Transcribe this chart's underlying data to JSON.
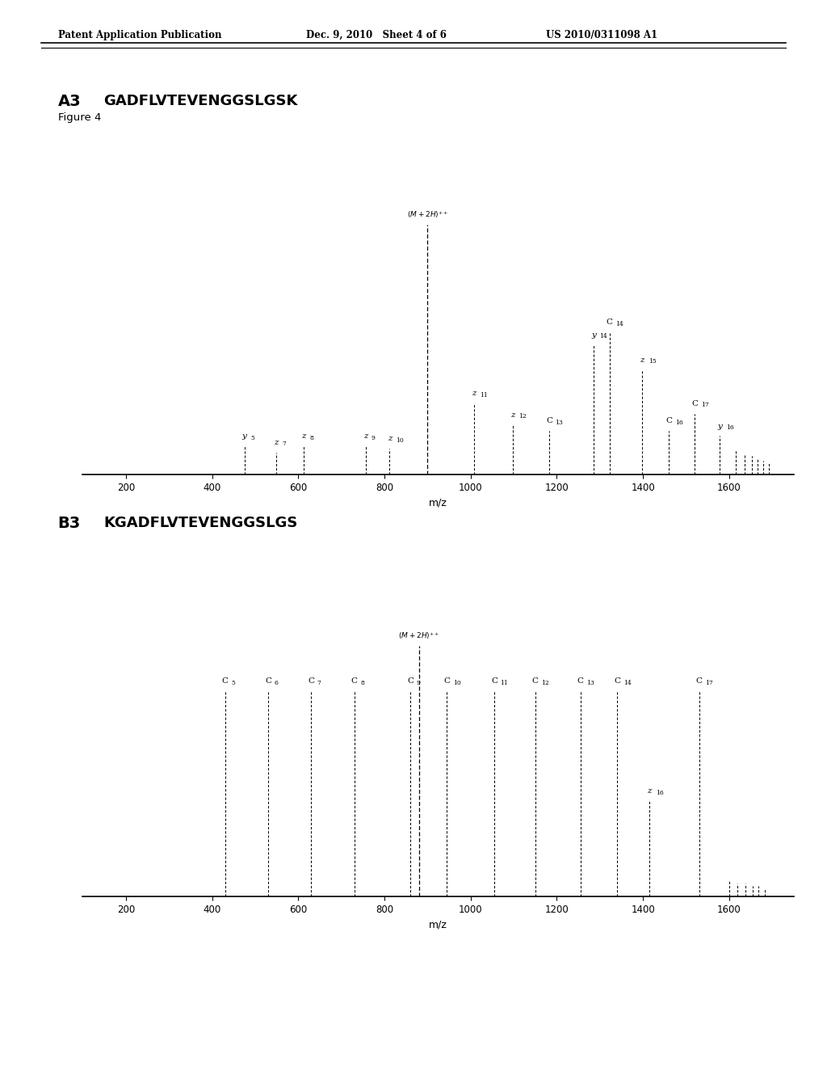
{
  "header_left": "Patent Application Publication",
  "header_mid": "Dec. 9, 2010   Sheet 4 of 6",
  "header_right": "US 2010/0311098 A1",
  "figure_label": "Figure 4",
  "panel_A": {
    "label": "A3",
    "sequence": "GADFLVTEVENGGSLGSK",
    "precursor_mz": 900,
    "precursor_intensity": 1.0,
    "peaks": [
      {
        "mz": 475,
        "intensity": 0.115,
        "label": "y",
        "subscript": "5",
        "italic": true
      },
      {
        "mz": 548,
        "intensity": 0.09,
        "label": "z",
        "subscript": "7",
        "italic": true
      },
      {
        "mz": 612,
        "intensity": 0.115,
        "label": "z",
        "subscript": "8",
        "italic": true
      },
      {
        "mz": 756,
        "intensity": 0.115,
        "label": "z",
        "subscript": "9",
        "italic": true
      },
      {
        "mz": 812,
        "intensity": 0.105,
        "label": "z",
        "subscript": "10",
        "italic": true
      },
      {
        "mz": 1008,
        "intensity": 0.285,
        "label": "z",
        "subscript": "11",
        "italic": true
      },
      {
        "mz": 1098,
        "intensity": 0.2,
        "label": "z",
        "subscript": "12",
        "italic": true
      },
      {
        "mz": 1182,
        "intensity": 0.175,
        "label": "C",
        "subscript": "13",
        "italic": false
      },
      {
        "mz": 1285,
        "intensity": 0.52,
        "label": "y",
        "subscript": "14",
        "italic": true
      },
      {
        "mz": 1322,
        "intensity": 0.57,
        "label": "C",
        "subscript": "14",
        "italic": false
      },
      {
        "mz": 1398,
        "intensity": 0.42,
        "label": "z",
        "subscript": "15",
        "italic": true
      },
      {
        "mz": 1460,
        "intensity": 0.175,
        "label": "C",
        "subscript": "16",
        "italic": false
      },
      {
        "mz": 1520,
        "intensity": 0.245,
        "label": "C",
        "subscript": "17",
        "italic": false
      },
      {
        "mz": 1578,
        "intensity": 0.155,
        "label": "y",
        "subscript": "16",
        "italic": true
      },
      {
        "mz": 1615,
        "intensity": 0.1,
        "label": "",
        "subscript": "",
        "italic": false
      },
      {
        "mz": 1635,
        "intensity": 0.085,
        "label": "",
        "subscript": "",
        "italic": false
      },
      {
        "mz": 1652,
        "intensity": 0.075,
        "label": "",
        "subscript": "",
        "italic": false
      },
      {
        "mz": 1665,
        "intensity": 0.065,
        "label": "",
        "subscript": "",
        "italic": false
      },
      {
        "mz": 1678,
        "intensity": 0.055,
        "label": "",
        "subscript": "",
        "italic": false
      },
      {
        "mz": 1692,
        "intensity": 0.05,
        "label": "",
        "subscript": "",
        "italic": false
      }
    ],
    "xlim": [
      100,
      1750
    ],
    "xticks": [
      200,
      400,
      600,
      800,
      1000,
      1200,
      1400,
      1600
    ],
    "xlabel": "m/z"
  },
  "panel_B": {
    "label": "B3",
    "sequence": "KGADFLVTEVENGGSLGS",
    "precursor_mz": 880,
    "precursor_intensity": 1.0,
    "peaks": [
      {
        "mz": 430,
        "intensity": 0.82,
        "label": "C",
        "subscript": "5",
        "italic": false
      },
      {
        "mz": 530,
        "intensity": 0.82,
        "label": "C",
        "subscript": "6",
        "italic": false
      },
      {
        "mz": 630,
        "intensity": 0.82,
        "label": "C",
        "subscript": "7",
        "italic": false
      },
      {
        "mz": 730,
        "intensity": 0.82,
        "label": "C",
        "subscript": "8",
        "italic": false
      },
      {
        "mz": 860,
        "intensity": 0.82,
        "label": "C",
        "subscript": "9",
        "italic": false
      },
      {
        "mz": 945,
        "intensity": 0.82,
        "label": "C",
        "subscript": "10",
        "italic": false
      },
      {
        "mz": 1055,
        "intensity": 0.82,
        "label": "C",
        "subscript": "11",
        "italic": false
      },
      {
        "mz": 1150,
        "intensity": 0.82,
        "label": "C",
        "subscript": "12",
        "italic": false
      },
      {
        "mz": 1255,
        "intensity": 0.82,
        "label": "C",
        "subscript": "13",
        "italic": false
      },
      {
        "mz": 1340,
        "intensity": 0.82,
        "label": "C",
        "subscript": "14",
        "italic": false
      },
      {
        "mz": 1415,
        "intensity": 0.38,
        "label": "z",
        "subscript": "16",
        "italic": true
      },
      {
        "mz": 1530,
        "intensity": 0.82,
        "label": "C",
        "subscript": "17",
        "italic": false
      },
      {
        "mz": 1600,
        "intensity": 0.06,
        "label": "",
        "subscript": "",
        "italic": false
      },
      {
        "mz": 1618,
        "intensity": 0.05,
        "label": "",
        "subscript": "",
        "italic": false
      },
      {
        "mz": 1638,
        "intensity": 0.05,
        "label": "",
        "subscript": "",
        "italic": false
      },
      {
        "mz": 1655,
        "intensity": 0.04,
        "label": "",
        "subscript": "",
        "italic": false
      },
      {
        "mz": 1668,
        "intensity": 0.04,
        "label": "",
        "subscript": "",
        "italic": false
      },
      {
        "mz": 1682,
        "intensity": 0.03,
        "label": "",
        "subscript": "",
        "italic": false
      }
    ],
    "xlim": [
      100,
      1750
    ],
    "xticks": [
      200,
      400,
      600,
      800,
      1000,
      1200,
      1400,
      1600
    ],
    "xlabel": "m/z"
  },
  "background_color": "#ffffff",
  "line_color": "#000000"
}
